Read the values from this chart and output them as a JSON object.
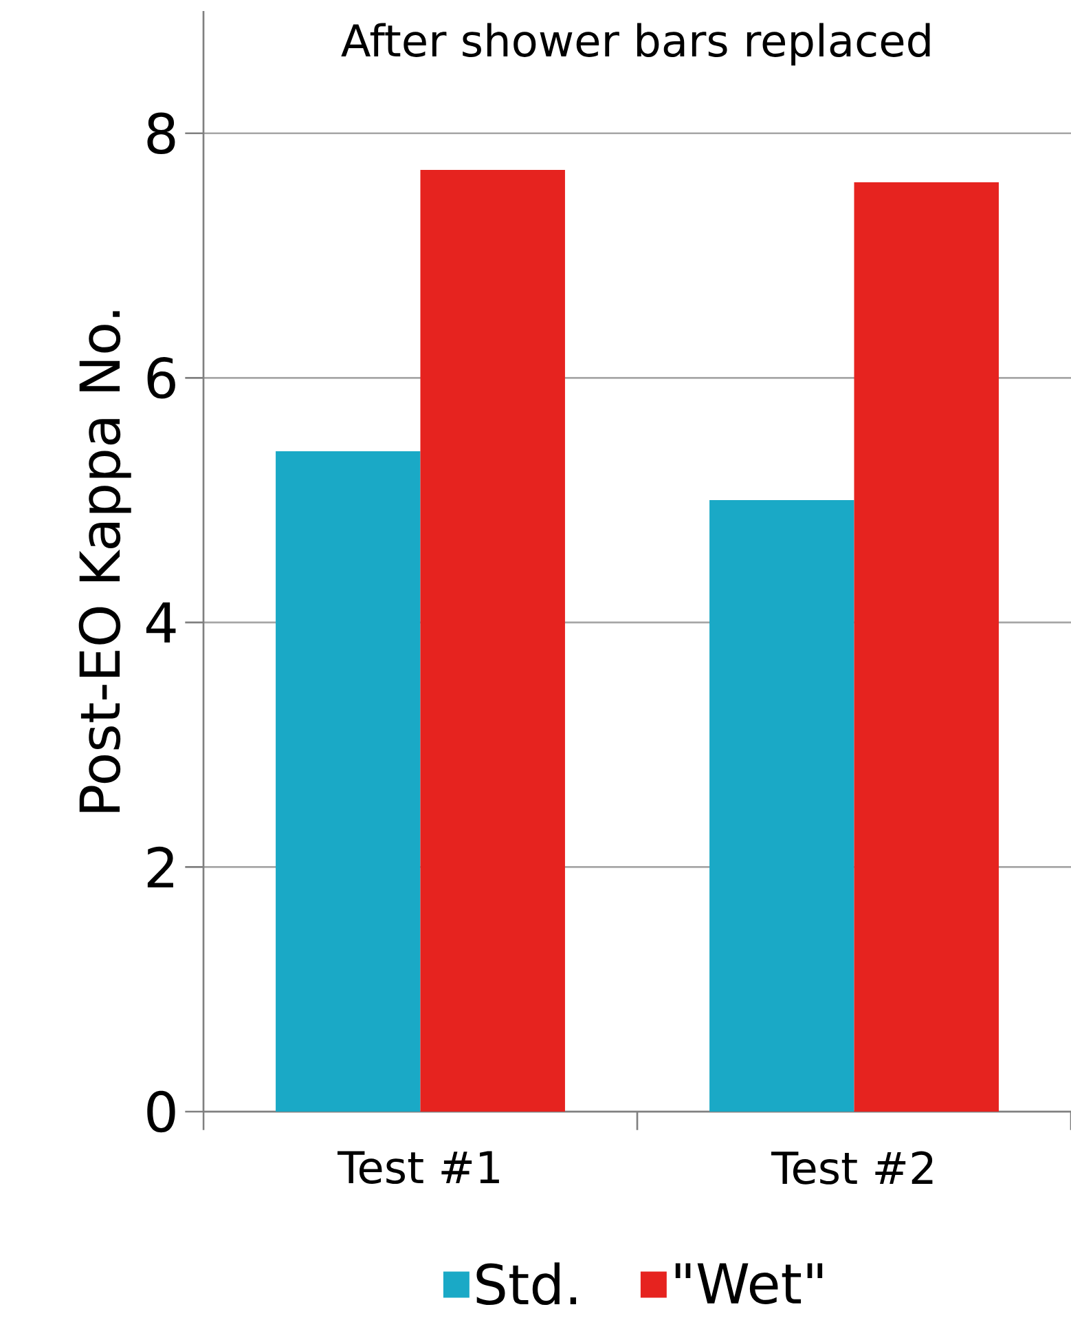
{
  "chart_data": {
    "type": "bar",
    "title": "After shower bars replaced",
    "ylabel": "Post-EO Kappa No.",
    "categories": [
      "Test #1",
      "Test #2"
    ],
    "series": [
      {
        "name": "Std.",
        "color": "#1aa9c6",
        "values": [
          5.4,
          5.0
        ]
      },
      {
        "name": "\"Wet\"",
        "color": "#e6231f",
        "values": [
          7.7,
          7.6
        ]
      }
    ],
    "ylim": [
      0,
      9
    ],
    "yticks": [
      0,
      2,
      4,
      6,
      8
    ],
    "grid": "y",
    "legend": "bottom"
  }
}
